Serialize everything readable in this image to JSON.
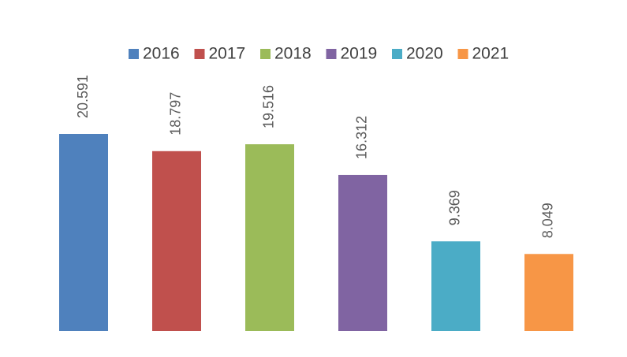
{
  "chart_data": {
    "type": "bar",
    "series": [
      {
        "name": "2016",
        "color": "#4f81bd",
        "values": [
          20.591
        ]
      },
      {
        "name": "2017",
        "color": "#c0504d",
        "values": [
          18.797
        ]
      },
      {
        "name": "2018",
        "color": "#9bbb59",
        "values": [
          19.516
        ]
      },
      {
        "name": "2019",
        "color": "#8064a2",
        "values": [
          16.312
        ]
      },
      {
        "name": "2020",
        "color": "#4bacc6",
        "values": [
          9.369
        ]
      },
      {
        "name": "2021",
        "color": "#f79646",
        "values": [
          8.049
        ]
      }
    ]
  }
}
